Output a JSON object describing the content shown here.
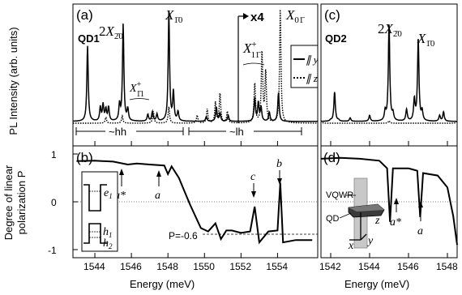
{
  "chart_data": [
    {
      "type": "line",
      "panel": "(a)",
      "dot": "QD1",
      "ylabel": "PL Intensity (arb. units)",
      "xlim": [
        1542.8,
        1556.2
      ],
      "legend": {
        "position": "right",
        "entries": [
          "∥ y",
          "∥ z"
        ]
      },
      "annotations": [
        "2X₂̄₀",
        "X₁̄₀",
        "X⁺₁̄₁",
        "x4",
        "X⁺₁₁̄",
        "X₀₁̄",
        "~hh",
        "~lh"
      ],
      "series": [
        {
          "name": "∥ y",
          "style": "solid",
          "x": [
            1543.6,
            1544.3,
            1544.45,
            1544.6,
            1544.75,
            1545.35,
            1545.55,
            1545.8,
            1546.9,
            1547.15,
            1547.4,
            1548.05,
            1548.3,
            1548.55,
            1550.1,
            1550.65,
            1550.85,
            1551.3,
            1552.75,
            1552.95,
            1553.1,
            1553.55,
            1554.05
          ],
          "values": [
            0.65,
            0.12,
            0.14,
            0.1,
            0.12,
            0.14,
            0.83,
            0.1,
            0.06,
            0.08,
            0.06,
            0.94,
            0.25,
            0.08,
            0.04,
            0.12,
            0.07,
            0.05,
            0.2,
            0.16,
            0.12,
            0.08,
            0.25
          ]
        },
        {
          "name": "∥ z",
          "style": "dotted",
          "x": [
            1544.6,
            1545.5,
            1547.2,
            1548.05,
            1549.6,
            1550.15,
            1550.6,
            1550.85,
            1551.25,
            1552.75,
            1553.15,
            1553.35,
            1554.15
          ],
          "values": [
            0.05,
            0.06,
            0.1,
            0.14,
            0.07,
            0.12,
            0.18,
            0.26,
            0.1,
            0.35,
            0.62,
            0.44,
            0.98
          ]
        }
      ]
    },
    {
      "type": "line",
      "panel": "(b)",
      "xlabel": "Energy (meV)",
      "ylabel": "Degree of linear polarization P",
      "xlim": [
        1542.8,
        1556.2
      ],
      "ylim": [
        -1.1,
        1.1
      ],
      "xticks": [
        1544,
        1546,
        1548,
        1550,
        1552,
        1554
      ],
      "yticks": [
        -1,
        0,
        1
      ],
      "annotations": [
        "a*",
        "a",
        "c",
        "b",
        "P=-0.6",
        "e₁",
        "h₁",
        "h₂"
      ],
      "series": [
        {
          "name": "P",
          "style": "solid",
          "x": [
            1543.0,
            1544.0,
            1545.0,
            1545.8,
            1546.3,
            1547.0,
            1547.8,
            1548.0,
            1548.2,
            1548.6,
            1549.2,
            1549.8,
            1550.2,
            1550.6,
            1550.9,
            1551.2,
            1551.5,
            1552.0,
            1552.5,
            1552.75,
            1553.0,
            1553.5,
            1554.0,
            1554.15,
            1554.3,
            1555.0,
            1555.9
          ],
          "values": [
            0.85,
            0.86,
            0.84,
            0.78,
            0.8,
            0.78,
            0.76,
            0.58,
            0.74,
            0.5,
            -0.05,
            -0.55,
            -0.62,
            -0.45,
            -0.78,
            -0.6,
            -0.6,
            -0.65,
            -0.62,
            -0.1,
            -0.85,
            -0.62,
            -0.6,
            0.4,
            -0.85,
            -0.8,
            -0.8
          ]
        }
      ]
    },
    {
      "type": "line",
      "panel": "(c)",
      "dot": "QD2",
      "xlim": [
        1541.5,
        1548.5
      ],
      "annotations": [
        "2X₂̄₀",
        "X₁̄₀"
      ],
      "series": [
        {
          "name": "∥ y",
          "style": "solid",
          "x": [
            1541.5,
            1542.0,
            1542.2,
            1542.4,
            1543.0,
            1544.0,
            1544.8,
            1545.0,
            1545.2,
            1545.9,
            1546.3,
            1546.5,
            1546.7,
            1547.6,
            1547.8,
            1548.5
          ],
          "values": [
            0.0,
            0.01,
            0.25,
            0.01,
            0.03,
            0.05,
            0.08,
            0.82,
            0.06,
            0.1,
            0.18,
            0.7,
            0.08,
            0.05,
            0.08,
            0.0
          ]
        },
        {
          "name": "∥ z",
          "style": "dotted",
          "x": [
            1541.5,
            1545.0,
            1548.5
          ],
          "values": [
            0.02,
            0.02,
            0.02
          ]
        }
      ]
    },
    {
      "type": "line",
      "panel": "(d)",
      "xlabel": "Energy (meV)",
      "xlim": [
        1541.5,
        1548.5
      ],
      "ylim": [
        -1.1,
        1.1
      ],
      "xticks": [
        1542,
        1544,
        1546,
        1548
      ],
      "annotations": [
        "a*",
        "a",
        "VQWR",
        "QD",
        "x",
        "y",
        "z"
      ],
      "series": [
        {
          "name": "P",
          "style": "solid",
          "x": [
            1541.5,
            1542.5,
            1543.5,
            1544.5,
            1544.9,
            1545.05,
            1545.2,
            1546.0,
            1546.45,
            1546.6,
            1546.75,
            1547.5,
            1548.0,
            1548.3,
            1548.5
          ],
          "values": [
            0.9,
            0.92,
            0.9,
            0.86,
            0.7,
            -0.42,
            0.7,
            0.7,
            0.65,
            -0.32,
            0.6,
            0.55,
            0.3,
            -0.3,
            -0.9
          ]
        }
      ]
    }
  ],
  "labels": {
    "a_panel": "(a)",
    "a_dot": "QD1",
    "b_panel": "(b)",
    "c_panel": "(c)",
    "c_dot": "QD2",
    "d_panel": "(d)",
    "ylabel_top": "PL Intensity (arb. units)",
    "ylabel_bottom_1": "Degree of linear",
    "ylabel_bottom_2": "polarization P",
    "xlabel": "Energy (meV)",
    "x4": "x4",
    "hh": "~hh",
    "lh": "~lh",
    "p_value": "P=-0.6",
    "legend_y": "∥ y",
    "legend_z": "∥ z",
    "a_star": "a*",
    "a": "a",
    "b": "b",
    "c": "c",
    "e1": "e",
    "h1": "h",
    "h2": "h",
    "vqwr": "VQWR",
    "qd": "QD",
    "ax_x": "x",
    "ax_y": "y",
    "ax_z": "z"
  },
  "ticks": {
    "left_x": [
      "1544",
      "1546",
      "1548",
      "1550",
      "1552",
      "1554"
    ],
    "right_x": [
      "1542",
      "1544",
      "1546",
      "1548"
    ],
    "y": [
      "1",
      "0",
      "-1"
    ]
  }
}
